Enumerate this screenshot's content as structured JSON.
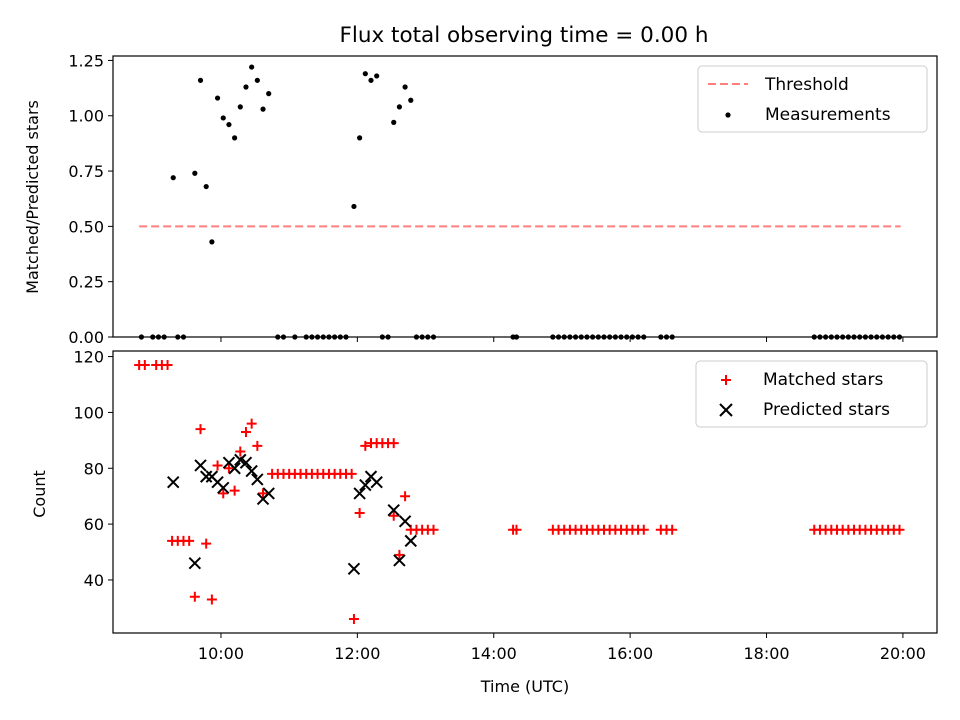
{
  "chart_data": [
    {
      "type": "scatter",
      "title": "Flux total observing time = 0.00 h",
      "ylabel": "Matched/Predicted stars",
      "xlim": [
        "08:25",
        "20:30"
      ],
      "ylim": [
        0,
        1.27
      ],
      "y_ticks": [
        "0.00",
        "0.25",
        "0.50",
        "0.75",
        "1.00",
        "1.25"
      ],
      "legend": {
        "position": "top-right",
        "entries": [
          "Threshold",
          "Measurements"
        ]
      },
      "colors": {
        "threshold": "#ff7f7f",
        "measurements": "#000000"
      },
      "series": [
        {
          "name": "Threshold",
          "kind": "dashed-line",
          "x": [
            "08:48",
            "19:58"
          ],
          "y": [
            0.5,
            0.5
          ]
        },
        {
          "name": "Measurements",
          "kind": "points",
          "points": [
            [
              "09:18",
              0.72
            ],
            [
              "09:37",
              0.74
            ],
            [
              "09:42",
              1.16
            ],
            [
              "09:47",
              0.68
            ],
            [
              "09:52",
              0.43
            ],
            [
              "09:57",
              1.08
            ],
            [
              "10:02",
              0.99
            ],
            [
              "10:07",
              0.96
            ],
            [
              "10:12",
              0.9
            ],
            [
              "10:17",
              1.04
            ],
            [
              "10:22",
              1.13
            ],
            [
              "10:27",
              1.22
            ],
            [
              "10:32",
              1.16
            ],
            [
              "10:37",
              1.03
            ],
            [
              "10:42",
              1.1
            ],
            [
              "11:57",
              0.59
            ],
            [
              "12:02",
              0.9
            ],
            [
              "12:07",
              1.19
            ],
            [
              "12:12",
              1.16
            ],
            [
              "12:17",
              1.18
            ],
            [
              "12:32",
              0.97
            ],
            [
              "12:37",
              1.04
            ],
            [
              "12:42",
              1.13
            ],
            [
              "12:47",
              1.07
            ],
            [
              "08:50",
              0
            ],
            [
              "09:00",
              0
            ],
            [
              "09:05",
              0
            ],
            [
              "09:10",
              0
            ],
            [
              "09:22",
              0
            ],
            [
              "09:27",
              0
            ],
            [
              "10:50",
              0
            ],
            [
              "10:55",
              0
            ],
            [
              "11:05",
              0
            ],
            [
              "11:15",
              0
            ],
            [
              "11:20",
              0
            ],
            [
              "11:25",
              0
            ],
            [
              "11:30",
              0
            ],
            [
              "11:35",
              0
            ],
            [
              "11:40",
              0
            ],
            [
              "11:45",
              0
            ],
            [
              "11:50",
              0
            ],
            [
              "12:22",
              0
            ],
            [
              "12:27",
              0
            ],
            [
              "12:52",
              0
            ],
            [
              "12:57",
              0
            ],
            [
              "13:02",
              0
            ],
            [
              "13:07",
              0
            ],
            [
              "14:17",
              0
            ],
            [
              "14:20",
              0
            ],
            [
              "14:52",
              0
            ],
            [
              "14:57",
              0
            ],
            [
              "15:02",
              0
            ],
            [
              "15:07",
              0
            ],
            [
              "15:12",
              0
            ],
            [
              "15:17",
              0
            ],
            [
              "15:22",
              0
            ],
            [
              "15:27",
              0
            ],
            [
              "15:32",
              0
            ],
            [
              "15:37",
              0
            ],
            [
              "15:42",
              0
            ],
            [
              "15:47",
              0
            ],
            [
              "15:52",
              0
            ],
            [
              "15:57",
              0
            ],
            [
              "16:02",
              0
            ],
            [
              "16:07",
              0
            ],
            [
              "16:12",
              0
            ],
            [
              "16:27",
              0
            ],
            [
              "16:32",
              0
            ],
            [
              "16:37",
              0
            ],
            [
              "18:42",
              0
            ],
            [
              "18:47",
              0
            ],
            [
              "18:52",
              0
            ],
            [
              "18:57",
              0
            ],
            [
              "19:02",
              0
            ],
            [
              "19:07",
              0
            ],
            [
              "19:12",
              0
            ],
            [
              "19:17",
              0
            ],
            [
              "19:22",
              0
            ],
            [
              "19:27",
              0
            ],
            [
              "19:32",
              0
            ],
            [
              "19:37",
              0
            ],
            [
              "19:42",
              0
            ],
            [
              "19:47",
              0
            ],
            [
              "19:52",
              0
            ],
            [
              "19:57",
              0
            ]
          ]
        }
      ]
    },
    {
      "type": "scatter",
      "title": "",
      "xlabel": "Time (UTC)",
      "ylabel": "Count",
      "xlim": [
        "08:25",
        "20:30"
      ],
      "ylim": [
        21,
        122
      ],
      "x_ticks": [
        "10:00",
        "12:00",
        "14:00",
        "16:00",
        "18:00",
        "20:00"
      ],
      "y_ticks": [
        "40",
        "60",
        "80",
        "100",
        "120"
      ],
      "legend": {
        "position": "top-right",
        "entries": [
          "Matched stars",
          "Predicted stars"
        ]
      },
      "colors": {
        "matched": "#ff0000",
        "predicted": "#000000"
      },
      "series": [
        {
          "name": "Matched stars",
          "marker": "plus",
          "points": [
            [
              "08:48",
              117
            ],
            [
              "08:53",
              117
            ],
            [
              "09:03",
              117
            ],
            [
              "09:08",
              117
            ],
            [
              "09:13",
              117
            ],
            [
              "09:17",
              54
            ],
            [
              "09:22",
              54
            ],
            [
              "09:27",
              54
            ],
            [
              "09:32",
              54
            ],
            [
              "09:37",
              34
            ],
            [
              "09:42",
              94
            ],
            [
              "09:47",
              53
            ],
            [
              "09:52",
              33
            ],
            [
              "09:57",
              81
            ],
            [
              "10:02",
              71
            ],
            [
              "10:07",
              80
            ],
            [
              "10:12",
              72
            ],
            [
              "10:17",
              86
            ],
            [
              "10:22",
              93
            ],
            [
              "10:27",
              96
            ],
            [
              "10:32",
              88
            ],
            [
              "10:37",
              71
            ],
            [
              "10:45",
              78
            ],
            [
              "10:50",
              78
            ],
            [
              "10:55",
              78
            ],
            [
              "11:00",
              78
            ],
            [
              "11:05",
              78
            ],
            [
              "11:10",
              78
            ],
            [
              "11:15",
              78
            ],
            [
              "11:20",
              78
            ],
            [
              "11:25",
              78
            ],
            [
              "11:30",
              78
            ],
            [
              "11:35",
              78
            ],
            [
              "11:40",
              78
            ],
            [
              "11:45",
              78
            ],
            [
              "11:50",
              78
            ],
            [
              "11:55",
              78
            ],
            [
              "11:57",
              26
            ],
            [
              "12:02",
              64
            ],
            [
              "12:07",
              88
            ],
            [
              "12:12",
              89
            ],
            [
              "12:17",
              89
            ],
            [
              "12:22",
              89
            ],
            [
              "12:27",
              89
            ],
            [
              "12:32",
              89
            ],
            [
              "12:32",
              63
            ],
            [
              "12:37",
              49
            ],
            [
              "12:42",
              70
            ],
            [
              "12:47",
              58
            ],
            [
              "12:52",
              58
            ],
            [
              "12:57",
              58
            ],
            [
              "13:02",
              58
            ],
            [
              "13:07",
              58
            ],
            [
              "14:17",
              58
            ],
            [
              "14:20",
              58
            ],
            [
              "14:52",
              58
            ],
            [
              "14:57",
              58
            ],
            [
              "15:02",
              58
            ],
            [
              "15:07",
              58
            ],
            [
              "15:12",
              58
            ],
            [
              "15:17",
              58
            ],
            [
              "15:22",
              58
            ],
            [
              "15:27",
              58
            ],
            [
              "15:32",
              58
            ],
            [
              "15:37",
              58
            ],
            [
              "15:42",
              58
            ],
            [
              "15:47",
              58
            ],
            [
              "15:52",
              58
            ],
            [
              "15:57",
              58
            ],
            [
              "16:02",
              58
            ],
            [
              "16:07",
              58
            ],
            [
              "16:12",
              58
            ],
            [
              "16:27",
              58
            ],
            [
              "16:32",
              58
            ],
            [
              "16:37",
              58
            ],
            [
              "18:42",
              58
            ],
            [
              "18:47",
              58
            ],
            [
              "18:52",
              58
            ],
            [
              "18:57",
              58
            ],
            [
              "19:02",
              58
            ],
            [
              "19:07",
              58
            ],
            [
              "19:12",
              58
            ],
            [
              "19:17",
              58
            ],
            [
              "19:22",
              58
            ],
            [
              "19:27",
              58
            ],
            [
              "19:32",
              58
            ],
            [
              "19:37",
              58
            ],
            [
              "19:42",
              58
            ],
            [
              "19:47",
              58
            ],
            [
              "19:52",
              58
            ],
            [
              "19:57",
              58
            ]
          ]
        },
        {
          "name": "Predicted stars",
          "marker": "x",
          "points": [
            [
              "09:18",
              75
            ],
            [
              "09:37",
              46
            ],
            [
              "09:42",
              81
            ],
            [
              "09:47",
              77
            ],
            [
              "09:52",
              77
            ],
            [
              "09:57",
              75
            ],
            [
              "10:02",
              73
            ],
            [
              "10:07",
              82
            ],
            [
              "10:12",
              80
            ],
            [
              "10:17",
              83
            ],
            [
              "10:22",
              82
            ],
            [
              "10:27",
              79
            ],
            [
              "10:32",
              76
            ],
            [
              "10:37",
              69
            ],
            [
              "10:42",
              71
            ],
            [
              "11:57",
              44
            ],
            [
              "12:02",
              71
            ],
            [
              "12:07",
              74
            ],
            [
              "12:12",
              77
            ],
            [
              "12:17",
              75
            ],
            [
              "12:32",
              65
            ],
            [
              "12:37",
              47
            ],
            [
              "12:42",
              61
            ],
            [
              "12:47",
              54
            ]
          ]
        }
      ]
    }
  ]
}
